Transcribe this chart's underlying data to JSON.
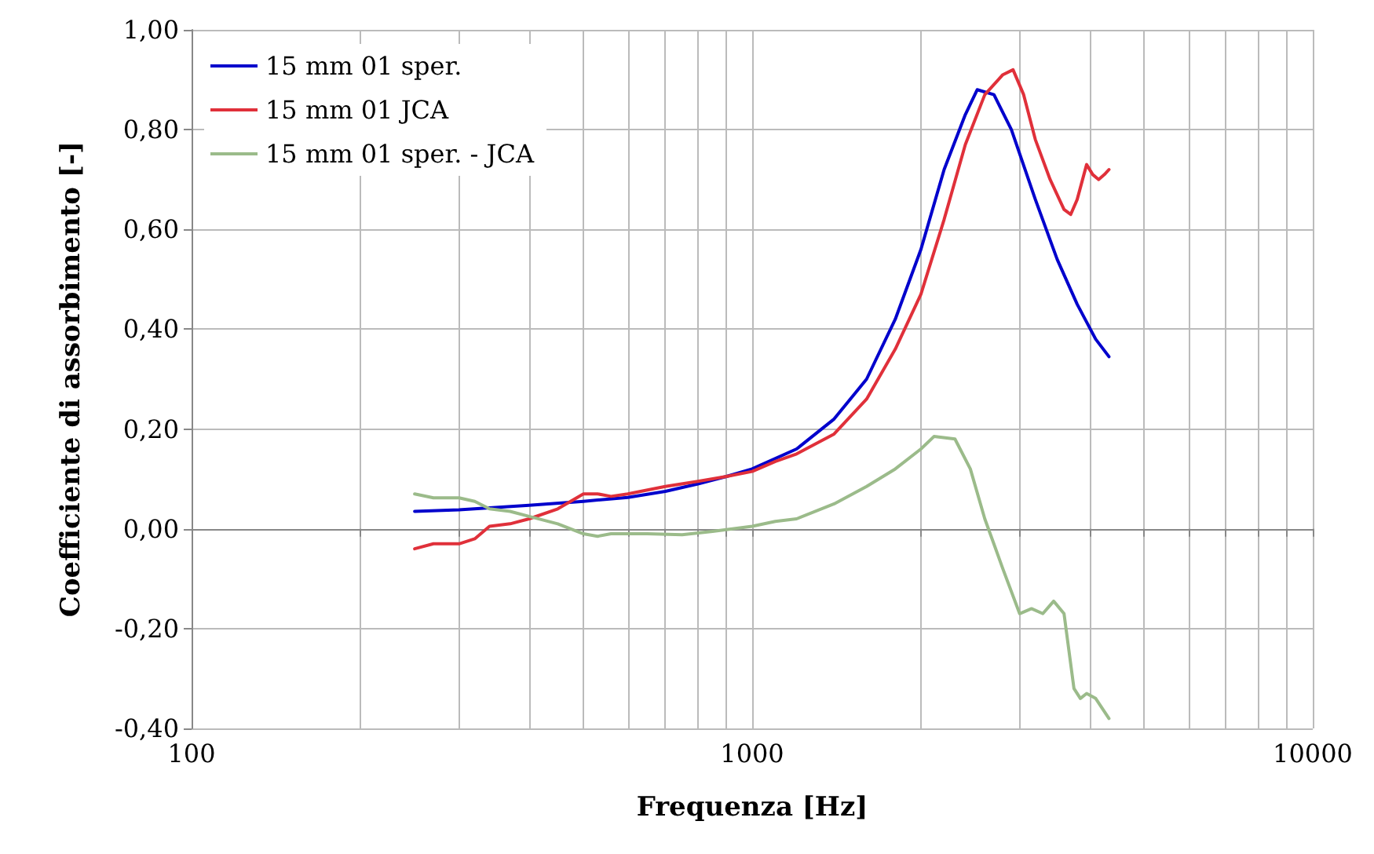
{
  "chart_data": {
    "type": "line",
    "xlabel": "Frequenza [Hz]",
    "ylabel": "Coefficiente di assorbimento [-]",
    "log": "x",
    "grid": true,
    "legend": "top left",
    "marker": "none",
    "line_style": "solid",
    "xlim": [
      100,
      10000
    ],
    "ylim": [
      -0.4,
      1.0
    ],
    "xticks": [
      100,
      {
        "value": 200,
        "label": null
      },
      {
        "value": 300,
        "label": null
      },
      {
        "value": 400,
        "label": null
      },
      {
        "value": 500,
        "label": null
      },
      {
        "value": 600,
        "label": null
      },
      {
        "value": 700,
        "label": null
      },
      {
        "value": 800,
        "label": null
      },
      {
        "value": 900,
        "label": null
      },
      1000,
      {
        "value": 2000,
        "label": null
      },
      {
        "value": 3000,
        "label": null
      },
      {
        "value": 4000,
        "label": null
      },
      {
        "value": 5000,
        "label": null
      },
      {
        "value": 6000,
        "label": null
      },
      {
        "value": 7000,
        "label": null
      },
      {
        "value": 8000,
        "label": null
      },
      {
        "value": 9000,
        "label": null
      },
      10000
    ],
    "yticks": [
      {
        "value": -0.4,
        "label": "-0,40"
      },
      {
        "value": -0.2,
        "label": "-0,20"
      },
      {
        "value": 0,
        "label": "0,00"
      },
      {
        "value": 0.2,
        "label": "0,20"
      },
      {
        "value": 0.4,
        "label": "0,40"
      },
      {
        "value": 0.6,
        "label": "0,60"
      },
      {
        "value": 0.8,
        "label": "0,80"
      },
      {
        "value": 1.0,
        "label": "1,00"
      }
    ],
    "series": [
      {
        "name": "15 mm 01 sper.",
        "color": "#0000cc",
        "x": [
          250,
          300,
          400,
          500,
          600,
          700,
          800,
          900,
          1000,
          1200,
          1400,
          1600,
          1800,
          2000,
          2200,
          2400,
          2520,
          2700,
          2900,
          3200,
          3500,
          3800,
          4100,
          4330
        ],
        "values": [
          0.035,
          0.038,
          0.047,
          0.055,
          0.063,
          0.075,
          0.09,
          0.105,
          0.12,
          0.16,
          0.22,
          0.3,
          0.42,
          0.56,
          0.72,
          0.83,
          0.88,
          0.87,
          0.8,
          0.66,
          0.54,
          0.45,
          0.38,
          0.345
        ]
      },
      {
        "name": "15 mm 01 JCA",
        "color": "#e0303a",
        "x": [
          250,
          270,
          300,
          320,
          340,
          370,
          400,
          450,
          500,
          530,
          560,
          600,
          700,
          800,
          900,
          1000,
          1100,
          1200,
          1400,
          1600,
          1800,
          2000,
          2200,
          2400,
          2600,
          2800,
          2920,
          3050,
          3200,
          3400,
          3600,
          3700,
          3800,
          3950,
          4050,
          4150,
          4250,
          4330
        ],
        "values": [
          -0.04,
          -0.03,
          -0.03,
          -0.02,
          0.005,
          0.01,
          0.02,
          0.04,
          0.07,
          0.07,
          0.065,
          0.07,
          0.085,
          0.095,
          0.105,
          0.115,
          0.135,
          0.15,
          0.19,
          0.26,
          0.36,
          0.47,
          0.62,
          0.77,
          0.87,
          0.91,
          0.92,
          0.87,
          0.78,
          0.7,
          0.64,
          0.63,
          0.66,
          0.73,
          0.71,
          0.7,
          0.71,
          0.72
        ]
      },
      {
        "name": "15 mm 01 sper. - JCA",
        "color": "#9bbb8a",
        "x": [
          250,
          270,
          300,
          320,
          340,
          370,
          400,
          450,
          500,
          530,
          560,
          650,
          750,
          850,
          1000,
          1100,
          1200,
          1400,
          1600,
          1800,
          2000,
          2110,
          2300,
          2450,
          2600,
          2800,
          3000,
          3150,
          3300,
          3450,
          3600,
          3750,
          3850,
          3950,
          4100,
          4330
        ],
        "values": [
          0.07,
          0.062,
          0.062,
          0.055,
          0.04,
          0.035,
          0.025,
          0.01,
          -0.01,
          -0.015,
          -0.01,
          -0.01,
          -0.012,
          -0.005,
          0.005,
          0.015,
          0.02,
          0.05,
          0.085,
          0.12,
          0.16,
          0.185,
          0.18,
          0.12,
          0.02,
          -0.08,
          -0.17,
          -0.16,
          -0.17,
          -0.145,
          -0.17,
          -0.32,
          -0.34,
          -0.33,
          -0.34,
          -0.38
        ]
      }
    ]
  }
}
